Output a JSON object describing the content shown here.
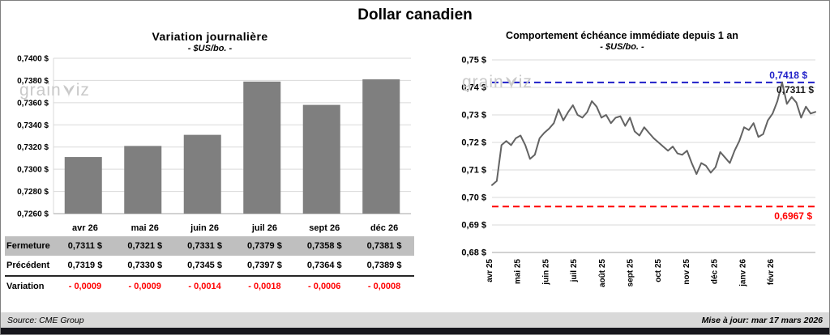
{
  "page": {
    "title": "Dollar canadien",
    "footer": {
      "source": "Source: CME Group",
      "updated": "Mise à jour: mar 17 mars 2026"
    }
  },
  "left_panel": {
    "title": "Variation journalière",
    "subtitle": "- $US/bo. -",
    "watermark_parts": [
      "grain",
      "iz"
    ],
    "table": {
      "row_labels": [
        "Fermeture",
        "Précédent",
        "Variation"
      ],
      "columns": [
        "avr 26",
        "mai 26",
        "juin 26",
        "juil 26",
        "sept 26",
        "déc 26"
      ],
      "fermeture": [
        "0,7311 $",
        "0,7321 $",
        "0,7331 $",
        "0,7379 $",
        "0,7358 $",
        "0,7381 $"
      ],
      "precedent": [
        "0,7319 $",
        "0,7330 $",
        "0,7345 $",
        "0,7397 $",
        "0,7364 $",
        "0,7389 $"
      ],
      "variation": [
        "- 0,0009",
        "- 0,0009",
        "- 0,0014",
        "- 0,0018",
        "- 0,0006",
        "- 0,0008"
      ]
    }
  },
  "right_panel": {
    "title": "Comportement échéance immédiate depuis 1 an",
    "subtitle": "- $US/bo. -",
    "watermark_parts": [
      "grain",
      "iz"
    ]
  },
  "chart_data": [
    {
      "type": "bar",
      "title": "Variation journalière",
      "subtitle": "- $US/bo. -",
      "categories": [
        "avr 26",
        "mai 26",
        "juin 26",
        "juil 26",
        "sept 26",
        "déc 26"
      ],
      "values": [
        0.7311,
        0.7321,
        0.7331,
        0.7379,
        0.7358,
        0.7381
      ],
      "ylim": [
        0.726,
        0.74
      ],
      "yticks": [
        [
          0.74,
          "0,7400 $"
        ],
        [
          0.738,
          "0,7380 $"
        ],
        [
          0.736,
          "0,7360 $"
        ],
        [
          0.734,
          "0,7340 $"
        ],
        [
          0.732,
          "0,7320 $"
        ],
        [
          0.73,
          "0,7300 $"
        ],
        [
          0.728,
          "0,7280 $"
        ],
        [
          0.726,
          "0,7260 $"
        ]
      ],
      "bar_color": "#7f7f7f",
      "grid": true,
      "legend": "none"
    },
    {
      "type": "line",
      "title": "Comportement échéance immédiate depuis 1 an",
      "subtitle": "- $US/bo. -",
      "x_ticks": [
        "avr 25",
        "mai 25",
        "juin 25",
        "juil 25",
        "août 25",
        "sept 25",
        "oct 25",
        "nov 25",
        "déc 25",
        "janv 26",
        "févr 26"
      ],
      "x_span_months": 11.5,
      "values": [
        0.7045,
        0.706,
        0.719,
        0.7205,
        0.719,
        0.7215,
        0.7225,
        0.719,
        0.714,
        0.7155,
        0.7215,
        0.7235,
        0.725,
        0.727,
        0.732,
        0.728,
        0.731,
        0.7335,
        0.73,
        0.729,
        0.731,
        0.735,
        0.733,
        0.729,
        0.73,
        0.727,
        0.729,
        0.7295,
        0.726,
        0.729,
        0.724,
        0.7225,
        0.7255,
        0.7235,
        0.7215,
        0.72,
        0.7185,
        0.717,
        0.7185,
        0.716,
        0.7155,
        0.717,
        0.7125,
        0.7085,
        0.7125,
        0.7115,
        0.709,
        0.711,
        0.7165,
        0.7145,
        0.7125,
        0.717,
        0.7205,
        0.7255,
        0.7245,
        0.727,
        0.722,
        0.723,
        0.728,
        0.7305,
        0.735,
        0.7418,
        0.734,
        0.7365,
        0.7345,
        0.729,
        0.733,
        0.7305,
        0.7311
      ],
      "ylim": [
        0.68,
        0.75
      ],
      "yticks": [
        [
          0.75,
          "0,75 $"
        ],
        [
          0.74,
          "0,74 $"
        ],
        [
          0.73,
          "0,73 $"
        ],
        [
          0.72,
          "0,72 $"
        ],
        [
          0.71,
          "0,71 $"
        ],
        [
          0.7,
          "0,70 $"
        ],
        [
          0.69,
          "0,69 $"
        ],
        [
          0.68,
          "0,68 $"
        ]
      ],
      "high_line": {
        "value": 0.7418,
        "label": "0,7418 $",
        "color": "#1f1fc8"
      },
      "low_line": {
        "value": 0.6967,
        "label": "0,6967 $",
        "color": "#ff0000"
      },
      "last": {
        "value": 0.7311,
        "label": "0,7311 $",
        "color": "#1a1a1a"
      },
      "line_color": "#636363",
      "grid": true,
      "legend": "none"
    }
  ]
}
